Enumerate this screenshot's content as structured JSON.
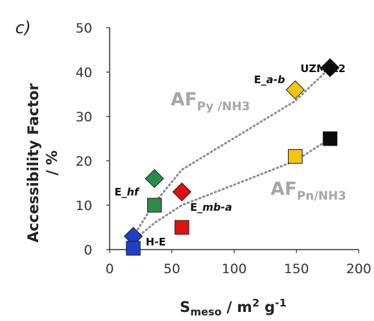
{
  "chart_data": {
    "type": "scatter",
    "panel_label": "c)",
    "xlabel": {
      "main": "S",
      "sub": "meso",
      "rest": " / m",
      "sup1": "2",
      "mid": " g",
      "sup2": "-1"
    },
    "ylabel_line1": "Accessibility Factor",
    "ylabel_line2": "/ %",
    "xlim": [
      0,
      200
    ],
    "ylim": [
      0,
      50
    ],
    "x_ticks": [
      "0",
      "50",
      "100",
      "150",
      "200"
    ],
    "y_ticks": [
      "0",
      "10",
      "20",
      "30",
      "40",
      "50"
    ],
    "grid": false,
    "series": [
      {
        "name": "AF Py/NH3",
        "marker": "diamond",
        "points": [
          {
            "label": "H-E",
            "x": 19,
            "y": 3,
            "color": "#1f3fc8"
          },
          {
            "label": "E_hf",
            "x": 36,
            "y": 16,
            "color": "#2e8b47"
          },
          {
            "label": "E_mb-a",
            "x": 58,
            "y": 13,
            "color": "#e01010"
          },
          {
            "label": "E_a-b",
            "x": 149,
            "y": 36,
            "color": "#f2c413"
          },
          {
            "label": "UZM-12",
            "x": 177,
            "y": 41,
            "color": "#0a0a0a"
          }
        ]
      },
      {
        "name": "AF Pn/NH3",
        "marker": "square",
        "points": [
          {
            "label": "H-E",
            "x": 19,
            "y": 0.3,
            "color": "#1f3fc8"
          },
          {
            "label": "E_hf",
            "x": 36,
            "y": 10,
            "color": "#2e8b47"
          },
          {
            "label": "E_mb-a",
            "x": 58,
            "y": 5,
            "color": "#e01010"
          },
          {
            "label": "E_a-b",
            "x": 149,
            "y": 21,
            "color": "#f2c413"
          },
          {
            "label": "UZM-12",
            "x": 177,
            "y": 25,
            "color": "#0a0a0a"
          }
        ]
      }
    ],
    "trendlines": [
      {
        "name": "Py",
        "x": [
          19,
          36,
          58,
          149,
          177
        ],
        "y": [
          3,
          10.5,
          18,
          33.5,
          41
        ],
        "style": "dotted",
        "color": "#8c8c8c"
      },
      {
        "name": "Pn",
        "x": [
          19,
          36,
          58,
          149,
          177
        ],
        "y": [
          2,
          6,
          10,
          20,
          25
        ],
        "style": "dotted",
        "color": "#8c8c8c"
      }
    ],
    "annotations": [
      {
        "text": "AF",
        "sub": "Py /NH3",
        "series": "Py"
      },
      {
        "text": "AF",
        "sub": "Pn/NH3",
        "series": "Pn"
      }
    ],
    "point_labels": [
      {
        "text": "UZM-12",
        "italic": []
      },
      {
        "text": "E_a-b",
        "prefix": "E_",
        "ital": "a-b"
      },
      {
        "text": "E_hf",
        "prefix": "E_",
        "ital": "hf"
      },
      {
        "text": "E_mb-a",
        "prefix": "E_",
        "ital": "mb-a"
      },
      {
        "text": "H-E",
        "italic": []
      }
    ]
  }
}
